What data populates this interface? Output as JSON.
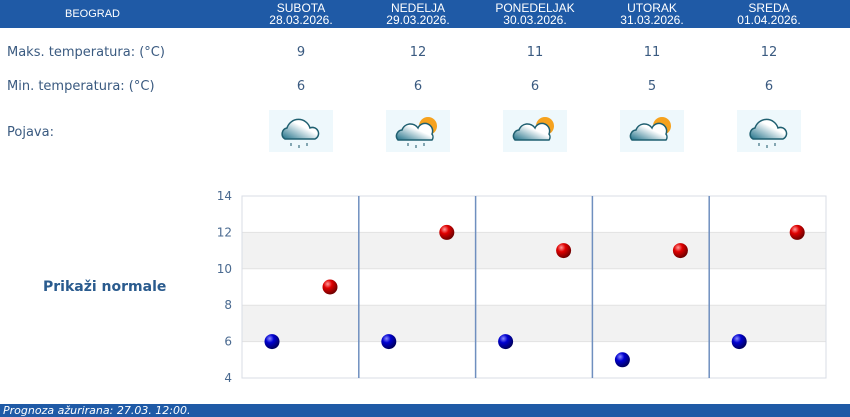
{
  "header": {
    "city": "BEOGRAD",
    "days": [
      {
        "name": "SUBOTA",
        "date": "28.03.2026."
      },
      {
        "name": "NEDELJA",
        "date": "29.03.2026."
      },
      {
        "name": "PONEDELJAK",
        "date": "30.03.2026."
      },
      {
        "name": "UTORAK",
        "date": "31.03.2026."
      },
      {
        "name": "SREDA",
        "date": "01.04.2026."
      }
    ]
  },
  "rows": {
    "max_label": "Maks. temperatura: (°C)",
    "min_label": "Min. temperatura: (°C)",
    "icon_label": "Pojava:",
    "max": [
      "9",
      "12",
      "11",
      "11",
      "12"
    ],
    "min": [
      "6",
      "6",
      "6",
      "5",
      "6"
    ],
    "icons": [
      "rain-cloud-icon",
      "partly-cloudy-rain-icon",
      "partly-cloudy-icon",
      "partly-cloudy-icon",
      "rain-cloud-icon"
    ]
  },
  "normale_label": "Prikaži normale",
  "footer": "Prognoza ažurirana:  27.03. 12:00.",
  "colors": {
    "header": "#1f5aa6",
    "max": "#d40000",
    "min": "#0000c0"
  },
  "chart_data": {
    "type": "scatter",
    "ylim": [
      4,
      14
    ],
    "yticks": [
      "4",
      "6",
      "8",
      "10",
      "12",
      "14"
    ],
    "categories": [
      "28.03.2026.",
      "29.03.2026.",
      "30.03.2026.",
      "31.03.2026.",
      "01.04.2026."
    ],
    "series": [
      {
        "values": [
          9,
          12,
          11,
          11,
          12
        ],
        "color": "#d40000"
      },
      {
        "values": [
          6,
          6,
          6,
          5,
          6
        ],
        "color": "#0000c0"
      }
    ]
  }
}
